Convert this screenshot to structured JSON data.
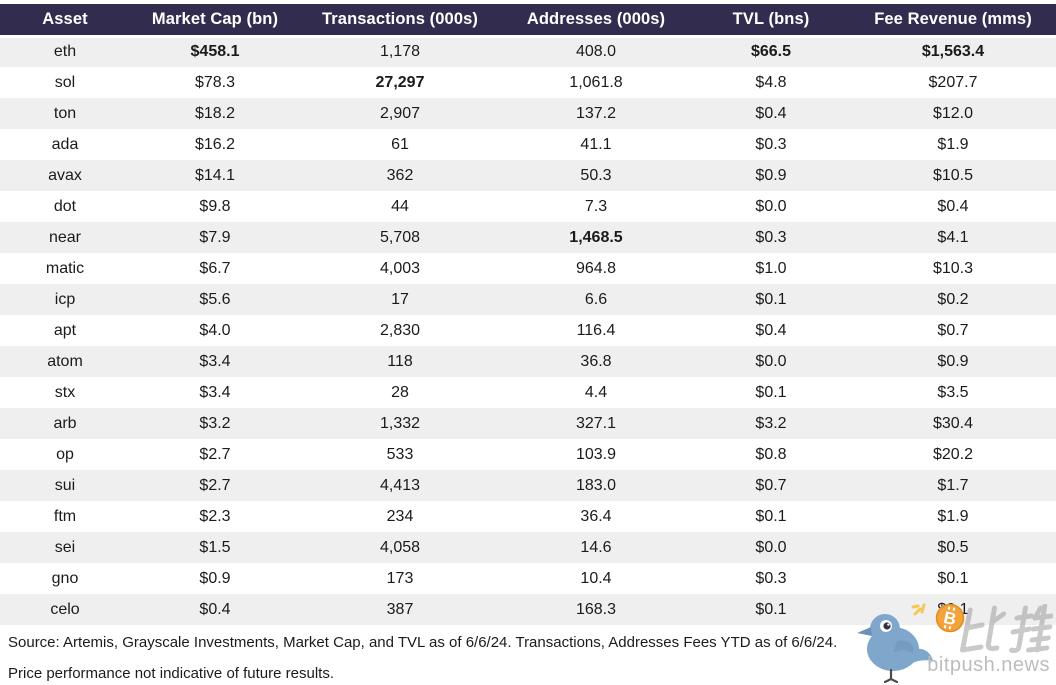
{
  "chart_data": {
    "type": "table",
    "title": "",
    "columns": [
      "Asset",
      "Market Cap (bn)",
      "Transactions (000s)",
      "Addresses (000s)",
      "TVL (bns)",
      "Fee Revenue (mms)"
    ],
    "rows": [
      {
        "cells": [
          "eth",
          "$458.1",
          "1,178",
          "408.0",
          "$66.5",
          "$1,563.4"
        ],
        "bold": [
          1,
          4,
          5
        ]
      },
      {
        "cells": [
          "sol",
          "$78.3",
          "27,297",
          "1,061.8",
          "$4.8",
          "$207.7"
        ],
        "bold": [
          2
        ]
      },
      {
        "cells": [
          "ton",
          "$18.2",
          "2,907",
          "137.2",
          "$0.4",
          "$12.0"
        ],
        "bold": []
      },
      {
        "cells": [
          "ada",
          "$16.2",
          "61",
          "41.1",
          "$0.3",
          "$1.9"
        ],
        "bold": []
      },
      {
        "cells": [
          "avax",
          "$14.1",
          "362",
          "50.3",
          "$0.9",
          "$10.5"
        ],
        "bold": []
      },
      {
        "cells": [
          "dot",
          "$9.8",
          "44",
          "7.3",
          "$0.0",
          "$0.4"
        ],
        "bold": []
      },
      {
        "cells": [
          "near",
          "$7.9",
          "5,708",
          "1,468.5",
          "$0.3",
          "$4.1"
        ],
        "bold": [
          3
        ]
      },
      {
        "cells": [
          "matic",
          "$6.7",
          "4,003",
          "964.8",
          "$1.0",
          "$10.3"
        ],
        "bold": []
      },
      {
        "cells": [
          "icp",
          "$5.6",
          "17",
          "6.6",
          "$0.1",
          "$0.2"
        ],
        "bold": []
      },
      {
        "cells": [
          "apt",
          "$4.0",
          "2,830",
          "116.4",
          "$0.4",
          "$0.7"
        ],
        "bold": []
      },
      {
        "cells": [
          "atom",
          "$3.4",
          "118",
          "36.8",
          "$0.0",
          "$0.9"
        ],
        "bold": []
      },
      {
        "cells": [
          "stx",
          "$3.4",
          "28",
          "4.4",
          "$0.1",
          "$3.5"
        ],
        "bold": []
      },
      {
        "cells": [
          "arb",
          "$3.2",
          "1,332",
          "327.1",
          "$3.2",
          "$30.4"
        ],
        "bold": []
      },
      {
        "cells": [
          "op",
          "$2.7",
          "533",
          "103.9",
          "$0.8",
          "$20.2"
        ],
        "bold": []
      },
      {
        "cells": [
          "sui",
          "$2.7",
          "4,413",
          "183.0",
          "$0.7",
          "$1.7"
        ],
        "bold": []
      },
      {
        "cells": [
          "ftm",
          "$2.3",
          "234",
          "36.4",
          "$0.1",
          "$1.9"
        ],
        "bold": []
      },
      {
        "cells": [
          "sei",
          "$1.5",
          "4,058",
          "14.6",
          "$0.0",
          "$0.5"
        ],
        "bold": []
      },
      {
        "cells": [
          "gno",
          "$0.9",
          "173",
          "10.4",
          "$0.3",
          "$0.1"
        ],
        "bold": []
      },
      {
        "cells": [
          "celo",
          "$0.4",
          "387",
          "168.3",
          "$0.1",
          "$0.1"
        ],
        "bold": []
      }
    ],
    "layout_hints": {
      "header_bg": "#322d4e",
      "header_text": "#ffffff",
      "stripe_color": "#efefef",
      "bold_means": "column maximum"
    }
  },
  "footer": {
    "line1": "Source: Artemis, Grayscale Investments, Market Cap, and TVL as of 6/6/24. Transactions, Addresses Fees YTD as of 6/6/24.",
    "line2": "Price performance not indicative of future results."
  },
  "watermark": {
    "brand_cn": "比推",
    "brand_domain": "bitpush.news",
    "colors": {
      "bird_blue": "#7fa6cb",
      "coin_orange": "#f2a33c",
      "sparkle_yellow": "#f6c445",
      "gray": "#bdbdbd"
    }
  }
}
